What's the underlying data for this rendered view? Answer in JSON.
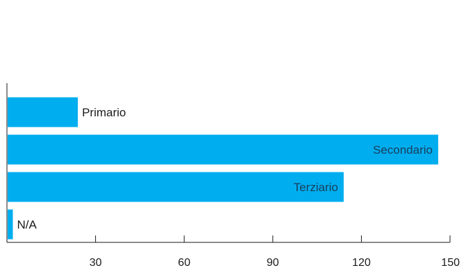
{
  "chart_data": {
    "type": "bar",
    "orientation": "horizontal",
    "categories": [
      "Primario",
      "Secondario",
      "Terziario",
      "N/A"
    ],
    "values": [
      24,
      146,
      114,
      2
    ],
    "label_position": [
      "outside",
      "inside",
      "inside",
      "outside"
    ],
    "xlim": [
      0,
      150
    ],
    "xticks": [
      30,
      60,
      90,
      120,
      150
    ],
    "title": "",
    "xlabel": "",
    "ylabel": "",
    "grid": false,
    "legend": "none",
    "colors": {
      "bar": "#00aeef",
      "label_inside": "#1a3d5c",
      "label_outside": "#1a1a1a",
      "axis": "#1a1a1a"
    }
  }
}
